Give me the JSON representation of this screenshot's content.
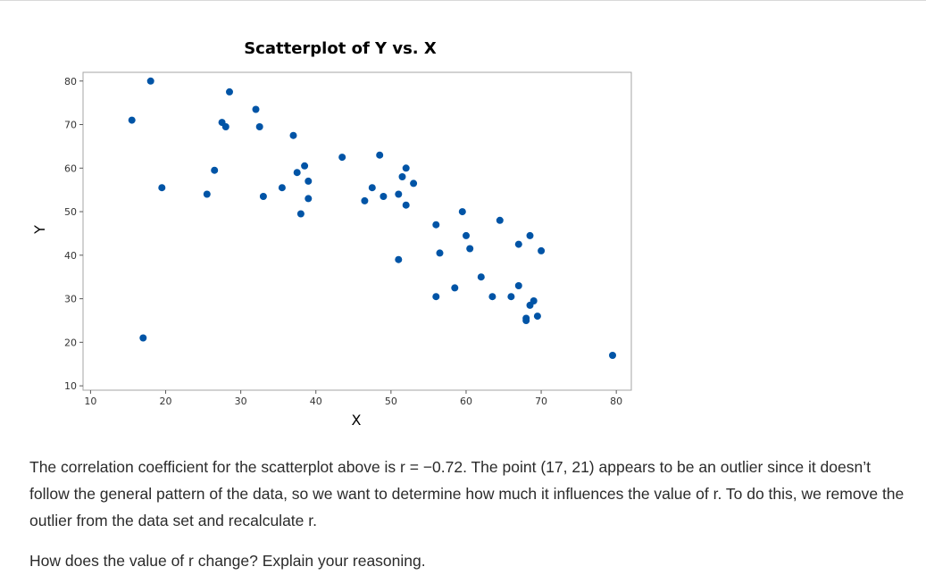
{
  "chart_data": {
    "type": "scatter",
    "title": "Scatterplot of Y vs. X",
    "xlabel": "X",
    "ylabel": "Y",
    "xlim": [
      9,
      82
    ],
    "ylim": [
      9,
      82
    ],
    "x_ticks": [
      10,
      20,
      30,
      40,
      50,
      60,
      70,
      80
    ],
    "y_ticks": [
      10,
      20,
      30,
      40,
      50,
      60,
      70,
      80
    ],
    "grid": false,
    "marker_color": "#0054a6",
    "points": [
      [
        15.5,
        71
      ],
      [
        17,
        21
      ],
      [
        18,
        80
      ],
      [
        19.5,
        55.5
      ],
      [
        25.5,
        54
      ],
      [
        26.5,
        59.5
      ],
      [
        27.5,
        70.5
      ],
      [
        28,
        69.5
      ],
      [
        28.5,
        77.5
      ],
      [
        32,
        73.5
      ],
      [
        32.5,
        69.5
      ],
      [
        33,
        53.5
      ],
      [
        35.5,
        55.5
      ],
      [
        37,
        67.5
      ],
      [
        37.5,
        59
      ],
      [
        38,
        49.5
      ],
      [
        38.5,
        60.5
      ],
      [
        39,
        57
      ],
      [
        39,
        53
      ],
      [
        43.5,
        62.5
      ],
      [
        46.5,
        52.5
      ],
      [
        47.5,
        55.5
      ],
      [
        48.5,
        63
      ],
      [
        49,
        53.5
      ],
      [
        51,
        54
      ],
      [
        51,
        39
      ],
      [
        51.5,
        58
      ],
      [
        52,
        60
      ],
      [
        52,
        51.5
      ],
      [
        53,
        56.5
      ],
      [
        56,
        47
      ],
      [
        56,
        30.5
      ],
      [
        56.5,
        40.5
      ],
      [
        58.5,
        32.5
      ],
      [
        59.5,
        50
      ],
      [
        60,
        44.5
      ],
      [
        60.5,
        41.5
      ],
      [
        62,
        35
      ],
      [
        63.5,
        30.5
      ],
      [
        64.5,
        48
      ],
      [
        66,
        30.5
      ],
      [
        67,
        33
      ],
      [
        67,
        42.5
      ],
      [
        68,
        25.5
      ],
      [
        68,
        25
      ],
      [
        68.5,
        44.5
      ],
      [
        68.5,
        28.5
      ],
      [
        69,
        29.5
      ],
      [
        69.5,
        26
      ],
      [
        70,
        41
      ],
      [
        79.5,
        17
      ]
    ]
  },
  "text": {
    "paragraph": "The correlation coefficient for the scatterplot above is r = −0.72. The point (17, 21) appears to be an outlier since it doesn’t follow the general pattern of the data, so we want to determine how much it influences the value of r. To do this, we remove the outlier from the data set and recalculate r.",
    "question": "How does the value of r change? Explain your reasoning."
  }
}
